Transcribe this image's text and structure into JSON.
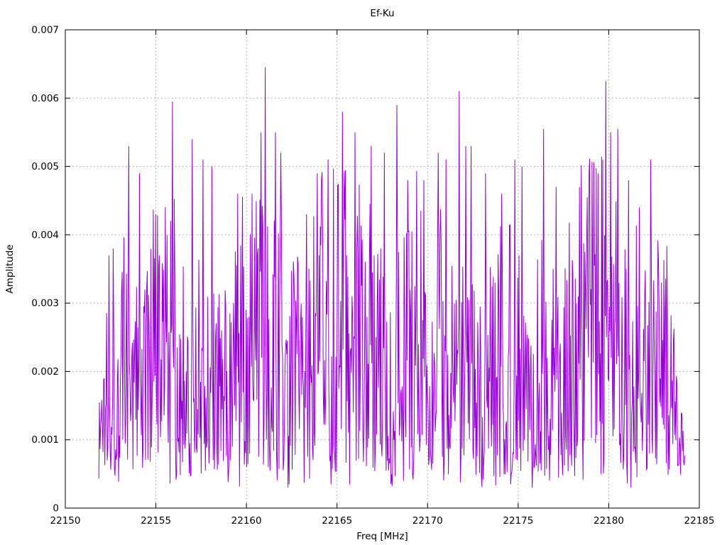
{
  "chart_data": {
    "type": "line",
    "title": "Ef-Ku",
    "xlabel": "Freq [MHz]",
    "ylabel": "Amplitude",
    "xlim": [
      22150,
      22185
    ],
    "ylim": [
      0,
      0.007
    ],
    "x_ticks": [
      22150,
      22155,
      22160,
      22165,
      22170,
      22175,
      22180,
      22185
    ],
    "y_ticks": [
      0,
      0.001,
      0.002,
      0.003,
      0.004,
      0.005,
      0.006,
      0.007
    ],
    "grid": true,
    "legend": "none",
    "line_color": "#9400d3",
    "grid_color": "#9a9a9a",
    "border_color": "#000000",
    "background_color": "#ffffff",
    "data_range": [
      22151.85,
      22184.2
    ],
    "noise_floor": 0.0004,
    "typical_mean": 0.0025,
    "peaks": [
      [
        22152.4,
        0.0037
      ],
      [
        22153.5,
        0.0053
      ],
      [
        22154.1,
        0.0049
      ],
      [
        22155.0,
        0.0043
      ],
      [
        22155.9,
        0.00595
      ],
      [
        22157.0,
        0.0054
      ],
      [
        22157.6,
        0.0051
      ],
      [
        22158.1,
        0.005
      ],
      [
        22159.5,
        0.0046
      ],
      [
        22160.3,
        0.0046
      ],
      [
        22160.8,
        0.0055
      ],
      [
        22161.05,
        0.00645
      ],
      [
        22161.6,
        0.0055
      ],
      [
        22161.9,
        0.0052
      ],
      [
        22163.3,
        0.0043
      ],
      [
        22163.9,
        0.0049
      ],
      [
        22164.5,
        0.0051
      ],
      [
        22165.3,
        0.0058
      ],
      [
        22166.0,
        0.0055
      ],
      [
        22166.9,
        0.0053
      ],
      [
        22167.6,
        0.0052
      ],
      [
        22168.3,
        0.0059
      ],
      [
        22168.9,
        0.0048
      ],
      [
        22169.8,
        0.0048
      ],
      [
        22170.6,
        0.0052
      ],
      [
        22171.0,
        0.0051
      ],
      [
        22171.75,
        0.0061
      ],
      [
        22172.1,
        0.0053
      ],
      [
        22172.4,
        0.0053
      ],
      [
        22173.2,
        0.0049
      ],
      [
        22174.1,
        0.0046
      ],
      [
        22174.8,
        0.0051
      ],
      [
        22175.2,
        0.005
      ],
      [
        22176.4,
        0.00555
      ],
      [
        22177.1,
        0.0047
      ],
      [
        22178.4,
        0.0047
      ],
      [
        22178.9,
        0.0049
      ],
      [
        22179.4,
        0.0049
      ],
      [
        22179.85,
        0.00625
      ],
      [
        22180.1,
        0.0055
      ],
      [
        22180.5,
        0.00555
      ],
      [
        22181.1,
        0.0048
      ],
      [
        22181.7,
        0.0044
      ],
      [
        22182.3,
        0.0051
      ],
      [
        22182.9,
        0.0033
      ],
      [
        22183.4,
        0.0015
      ]
    ],
    "synthesis": {
      "seed": 1337,
      "n_points": 980,
      "edge_ramp_mhz": 0.45,
      "tail_decay_start": 22182.9
    }
  }
}
